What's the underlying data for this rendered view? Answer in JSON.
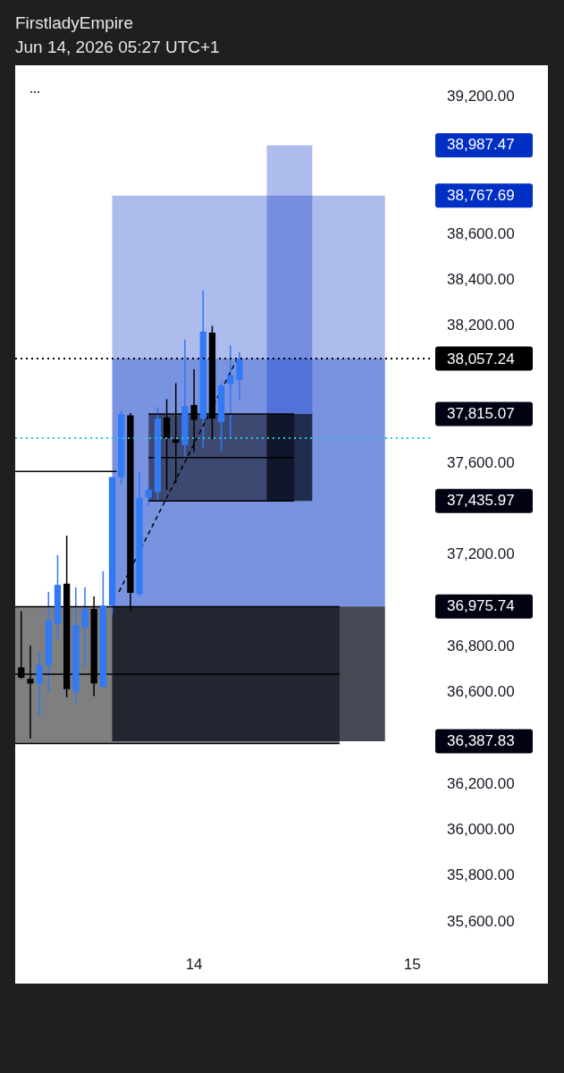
{
  "chart_data": {
    "type": "candlestick",
    "title": "FirstladyEmpire",
    "subtitle": "Jun 14, 2026 05:27 UTC+1",
    "x": [
      "2026-06-13T05:00",
      "2026-06-13T06:00",
      "2026-06-13T07:00",
      "2026-06-13T08:00",
      "2026-06-13T09:00",
      "2026-06-13T10:00",
      "2026-06-13T11:00",
      "2026-06-13T12:00",
      "2026-06-13T13:00",
      "2026-06-13T14:00",
      "2026-06-13T15:00",
      "2026-06-13T16:00",
      "2026-06-13T17:00",
      "2026-06-13T18:00",
      "2026-06-13T19:00",
      "2026-06-13T20:00",
      "2026-06-13T21:00",
      "2026-06-13T22:00",
      "2026-06-13T23:00",
      "2026-06-14T00:00",
      "2026-06-14T01:00",
      "2026-06-14T02:00",
      "2026-06-14T03:00",
      "2026-06-14T04:00",
      "2026-06-14T05:00"
    ],
    "ohlc": [
      [
        36710,
        36955,
        36660,
        36665
      ],
      [
        36660,
        36805,
        36400,
        36640
      ],
      [
        36640,
        36780,
        36495,
        36720
      ],
      [
        36720,
        37040,
        36605,
        36915
      ],
      [
        36900,
        37200,
        36835,
        37070
      ],
      [
        37075,
        37285,
        36580,
        36615
      ],
      [
        36605,
        37060,
        36550,
        36895
      ],
      [
        36885,
        37060,
        36710,
        36965
      ],
      [
        36965,
        37020,
        36585,
        36640
      ],
      [
        36625,
        37130,
        36625,
        36980
      ],
      [
        36980,
        37540,
        36940,
        37540
      ],
      [
        37540,
        37830,
        37510,
        37815
      ],
      [
        37810,
        37820,
        36955,
        37035
      ],
      [
        37030,
        37565,
        37020,
        37450
      ],
      [
        37450,
        37515,
        37415,
        37485
      ],
      [
        37475,
        37845,
        37430,
        37795
      ],
      [
        37800,
        37880,
        37485,
        37710
      ],
      [
        37705,
        37950,
        37515,
        37690
      ],
      [
        37680,
        38140,
        37615,
        37850
      ],
      [
        37855,
        38010,
        37650,
        37790
      ],
      [
        37795,
        38355,
        37670,
        38175
      ],
      [
        38170,
        38200,
        37705,
        37795
      ],
      [
        37780,
        37950,
        37650,
        37940
      ],
      [
        37945,
        38115,
        37715,
        37985
      ],
      [
        37965,
        38085,
        37875,
        38057.24
      ]
    ],
    "colors": [
      "#000000",
      "#000000",
      "#3179f5",
      "#3179f5",
      "#3179f5",
      "#000000",
      "#3179f5",
      "#3179f5",
      "#000000",
      "#3179f5",
      "#3179f5",
      "#3179f5",
      "#000000",
      "#3179f5",
      "#3179f5",
      "#3179f5",
      "#000000",
      "#000000",
      "#3179f5",
      "#000000",
      "#3179f5",
      "#000000",
      "#3179f5",
      "#3179f5",
      "#3179f5"
    ],
    "xlim": [
      "2026-06-13T04:20",
      "2026-06-15T02:20"
    ],
    "xticks": [
      {
        "value": "2026-06-14",
        "label": "14"
      },
      {
        "value": "2026-06-15",
        "label": "15"
      }
    ],
    "ylim": [
      35600,
      39200
    ],
    "yticks": [
      {
        "value": 35600,
        "label": "35,600.00"
      },
      {
        "value": 35800,
        "label": "35,800.00"
      },
      {
        "value": 36000,
        "label": "36,000.00"
      },
      {
        "value": 36200,
        "label": "36,200.00"
      },
      {
        "value": 36387.83,
        "label": "36,387.83"
      },
      {
        "value": 36600,
        "label": "36,600.00"
      },
      {
        "value": 36800,
        "label": "36,800.00"
      },
      {
        "value": 36975.74,
        "label": "36,975.74"
      },
      {
        "value": 37200,
        "label": "37,200.00"
      },
      {
        "value": 37435.97,
        "label": "37,435.97"
      },
      {
        "value": 37600,
        "label": "37,600.00"
      },
      {
        "value": 37815.07,
        "label": "37,815.07"
      },
      {
        "value": 38200,
        "label": "38,200.00"
      },
      {
        "value": 38400,
        "label": "38,400.00"
      },
      {
        "value": 38600,
        "label": "38,600.00"
      },
      {
        "value": 38767.69,
        "label": "38,767.69"
      },
      {
        "value": 38987.47,
        "label": "38,987.47"
      },
      {
        "value": 39200,
        "label": "39,200.00"
      }
    ],
    "series": [
      {
        "type": "line",
        "x": [
          "2026-06-13T04:20",
          "2026-06-14T16:00"
        ],
        "values": [
          36680,
          36680
        ],
        "lower": [
          36378,
          36378
        ],
        "upper": [
          36975,
          36975
        ],
        "color": "#000000"
      },
      {
        "type": "line",
        "x": [
          "2026-06-13T15:00",
          "2026-06-14T21:00"
        ],
        "values": [
          null,
          null
        ],
        "lower": [
          38057.24,
          38057.24
        ],
        "upper": [
          38767.69,
          38767.69
        ],
        "color": "#adbcec"
      },
      {
        "type": "line",
        "x": [
          "2026-06-13T15:00",
          "2026-06-14T21:00"
        ],
        "values": [
          null,
          null
        ],
        "lower": [
          36975.74,
          36975.74
        ],
        "upper": [
          38057.24,
          38057.24
        ],
        "color": "#7a93e0"
      },
      {
        "type": "line",
        "x": [
          "2026-06-13T15:00",
          "2026-06-14T21:00"
        ],
        "values": [
          null,
          null
        ],
        "lower": [
          36387.83,
          36387.83
        ],
        "upper": [
          36975.74,
          36975.74
        ],
        "color": "#464953"
      },
      {
        "type": "line",
        "x": [
          "2026-06-13T19:00",
          "2026-06-14T11:00"
        ],
        "values": [
          37625,
          37625
        ],
        "lower": [
          37436,
          37436
        ],
        "upper": [
          37815,
          37815
        ],
        "color": "#000000"
      },
      {
        "type": "line",
        "x": [
          "2026-06-14T08:00",
          "2026-06-14T13:00"
        ],
        "values": [
          null,
          null
        ],
        "lower": [
          37815.07,
          37815.07
        ],
        "upper": [
          38987.47,
          38987.47
        ],
        "color": "#adbcec"
      },
      {
        "type": "line",
        "x": [
          "2026-06-14T08:00",
          "2026-06-14T13:00"
        ],
        "values": [
          null,
          null
        ],
        "lower": [
          37435.97,
          37435.97
        ],
        "upper": [
          37815.07,
          37815.07
        ],
        "color": "#464953"
      },
      {
        "type": "line",
        "x": [
          "2026-06-13T15:45",
          "2026-06-14T04:40"
        ],
        "values": [
          37040,
          38050
        ],
        "color": "#000000",
        "line_style": "dashed"
      },
      {
        "type": "line",
        "x": [
          "2026-06-13T04:20",
          "2026-06-13T15:30"
        ],
        "values": [
          37565,
          37565
        ],
        "color": "#000000",
        "line_style": "solid"
      },
      {
        "type": "line",
        "x": [
          "2026-06-13T04:20",
          "2026-06-14T16:00"
        ],
        "values": [
          36975,
          36975
        ],
        "color": "#000000",
        "line_style": "solid"
      },
      {
        "type": "line",
        "x": [
          "2026-06-13T04:20",
          "2026-06-14T16:00"
        ],
        "values": [
          36378,
          36378
        ],
        "color": "#000000",
        "line_style": "solid"
      },
      {
        "type": "line",
        "x": [
          "2026-06-13T19:00",
          "2026-06-14T11:00"
        ],
        "values": [
          37815,
          37815
        ],
        "color": "#000000",
        "line_style": "solid"
      },
      {
        "type": "line",
        "x": [
          "2026-06-13T19:00",
          "2026-06-14T11:00"
        ],
        "values": [
          37436,
          37436
        ],
        "color": "#000000",
        "line_style": "solid"
      }
    ],
    "ref_lines": [
      {
        "axis": "y",
        "value": 38057.24,
        "label": "38,057.24",
        "color": "#000000",
        "line_style": "dotted"
      },
      {
        "axis": "y",
        "value": 37710,
        "color": "#26c6da",
        "line_style": "dotted"
      }
    ]
  }
}
